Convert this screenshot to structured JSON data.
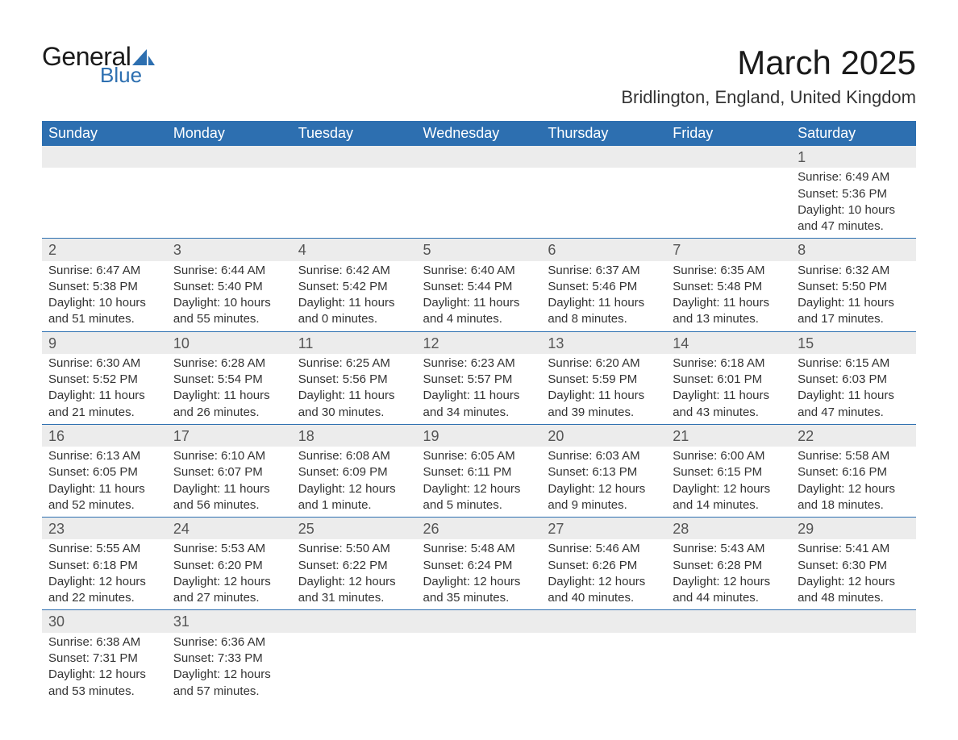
{
  "logo": {
    "word1": "General",
    "word2": "Blue",
    "sail_color": "#2d6fb0",
    "text_color_dark": "#1a1a1a",
    "text_color_blue": "#2d6fb0"
  },
  "title": "March 2025",
  "location": "Bridlington, England, United Kingdom",
  "colors": {
    "header_bg": "#2d6fb0",
    "header_text": "#ffffff",
    "daynum_bg": "#ececec",
    "daynum_text": "#555555",
    "body_text": "#333333",
    "row_divider": "#2d6fb0",
    "page_bg": "#ffffff"
  },
  "typography": {
    "title_fontsize": 42,
    "location_fontsize": 22,
    "dayheader_fontsize": 18,
    "daynum_fontsize": 18,
    "detail_fontsize": 15,
    "logo_general_fontsize": 32,
    "logo_blue_fontsize": 26
  },
  "calendar": {
    "type": "table",
    "columns": [
      "Sunday",
      "Monday",
      "Tuesday",
      "Wednesday",
      "Thursday",
      "Friday",
      "Saturday"
    ],
    "weeks": [
      [
        null,
        null,
        null,
        null,
        null,
        null,
        {
          "day": "1",
          "sunrise": "Sunrise: 6:49 AM",
          "sunset": "Sunset: 5:36 PM",
          "daylight": "Daylight: 10 hours and 47 minutes."
        }
      ],
      [
        {
          "day": "2",
          "sunrise": "Sunrise: 6:47 AM",
          "sunset": "Sunset: 5:38 PM",
          "daylight": "Daylight: 10 hours and 51 minutes."
        },
        {
          "day": "3",
          "sunrise": "Sunrise: 6:44 AM",
          "sunset": "Sunset: 5:40 PM",
          "daylight": "Daylight: 10 hours and 55 minutes."
        },
        {
          "day": "4",
          "sunrise": "Sunrise: 6:42 AM",
          "sunset": "Sunset: 5:42 PM",
          "daylight": "Daylight: 11 hours and 0 minutes."
        },
        {
          "day": "5",
          "sunrise": "Sunrise: 6:40 AM",
          "sunset": "Sunset: 5:44 PM",
          "daylight": "Daylight: 11 hours and 4 minutes."
        },
        {
          "day": "6",
          "sunrise": "Sunrise: 6:37 AM",
          "sunset": "Sunset: 5:46 PM",
          "daylight": "Daylight: 11 hours and 8 minutes."
        },
        {
          "day": "7",
          "sunrise": "Sunrise: 6:35 AM",
          "sunset": "Sunset: 5:48 PM",
          "daylight": "Daylight: 11 hours and 13 minutes."
        },
        {
          "day": "8",
          "sunrise": "Sunrise: 6:32 AM",
          "sunset": "Sunset: 5:50 PM",
          "daylight": "Daylight: 11 hours and 17 minutes."
        }
      ],
      [
        {
          "day": "9",
          "sunrise": "Sunrise: 6:30 AM",
          "sunset": "Sunset: 5:52 PM",
          "daylight": "Daylight: 11 hours and 21 minutes."
        },
        {
          "day": "10",
          "sunrise": "Sunrise: 6:28 AM",
          "sunset": "Sunset: 5:54 PM",
          "daylight": "Daylight: 11 hours and 26 minutes."
        },
        {
          "day": "11",
          "sunrise": "Sunrise: 6:25 AM",
          "sunset": "Sunset: 5:56 PM",
          "daylight": "Daylight: 11 hours and 30 minutes."
        },
        {
          "day": "12",
          "sunrise": "Sunrise: 6:23 AM",
          "sunset": "Sunset: 5:57 PM",
          "daylight": "Daylight: 11 hours and 34 minutes."
        },
        {
          "day": "13",
          "sunrise": "Sunrise: 6:20 AM",
          "sunset": "Sunset: 5:59 PM",
          "daylight": "Daylight: 11 hours and 39 minutes."
        },
        {
          "day": "14",
          "sunrise": "Sunrise: 6:18 AM",
          "sunset": "Sunset: 6:01 PM",
          "daylight": "Daylight: 11 hours and 43 minutes."
        },
        {
          "day": "15",
          "sunrise": "Sunrise: 6:15 AM",
          "sunset": "Sunset: 6:03 PM",
          "daylight": "Daylight: 11 hours and 47 minutes."
        }
      ],
      [
        {
          "day": "16",
          "sunrise": "Sunrise: 6:13 AM",
          "sunset": "Sunset: 6:05 PM",
          "daylight": "Daylight: 11 hours and 52 minutes."
        },
        {
          "day": "17",
          "sunrise": "Sunrise: 6:10 AM",
          "sunset": "Sunset: 6:07 PM",
          "daylight": "Daylight: 11 hours and 56 minutes."
        },
        {
          "day": "18",
          "sunrise": "Sunrise: 6:08 AM",
          "sunset": "Sunset: 6:09 PM",
          "daylight": "Daylight: 12 hours and 1 minute."
        },
        {
          "day": "19",
          "sunrise": "Sunrise: 6:05 AM",
          "sunset": "Sunset: 6:11 PM",
          "daylight": "Daylight: 12 hours and 5 minutes."
        },
        {
          "day": "20",
          "sunrise": "Sunrise: 6:03 AM",
          "sunset": "Sunset: 6:13 PM",
          "daylight": "Daylight: 12 hours and 9 minutes."
        },
        {
          "day": "21",
          "sunrise": "Sunrise: 6:00 AM",
          "sunset": "Sunset: 6:15 PM",
          "daylight": "Daylight: 12 hours and 14 minutes."
        },
        {
          "day": "22",
          "sunrise": "Sunrise: 5:58 AM",
          "sunset": "Sunset: 6:16 PM",
          "daylight": "Daylight: 12 hours and 18 minutes."
        }
      ],
      [
        {
          "day": "23",
          "sunrise": "Sunrise: 5:55 AM",
          "sunset": "Sunset: 6:18 PM",
          "daylight": "Daylight: 12 hours and 22 minutes."
        },
        {
          "day": "24",
          "sunrise": "Sunrise: 5:53 AM",
          "sunset": "Sunset: 6:20 PM",
          "daylight": "Daylight: 12 hours and 27 minutes."
        },
        {
          "day": "25",
          "sunrise": "Sunrise: 5:50 AM",
          "sunset": "Sunset: 6:22 PM",
          "daylight": "Daylight: 12 hours and 31 minutes."
        },
        {
          "day": "26",
          "sunrise": "Sunrise: 5:48 AM",
          "sunset": "Sunset: 6:24 PM",
          "daylight": "Daylight: 12 hours and 35 minutes."
        },
        {
          "day": "27",
          "sunrise": "Sunrise: 5:46 AM",
          "sunset": "Sunset: 6:26 PM",
          "daylight": "Daylight: 12 hours and 40 minutes."
        },
        {
          "day": "28",
          "sunrise": "Sunrise: 5:43 AM",
          "sunset": "Sunset: 6:28 PM",
          "daylight": "Daylight: 12 hours and 44 minutes."
        },
        {
          "day": "29",
          "sunrise": "Sunrise: 5:41 AM",
          "sunset": "Sunset: 6:30 PM",
          "daylight": "Daylight: 12 hours and 48 minutes."
        }
      ],
      [
        {
          "day": "30",
          "sunrise": "Sunrise: 6:38 AM",
          "sunset": "Sunset: 7:31 PM",
          "daylight": "Daylight: 12 hours and 53 minutes."
        },
        {
          "day": "31",
          "sunrise": "Sunrise: 6:36 AM",
          "sunset": "Sunset: 7:33 PM",
          "daylight": "Daylight: 12 hours and 57 minutes."
        },
        null,
        null,
        null,
        null,
        null
      ]
    ]
  }
}
